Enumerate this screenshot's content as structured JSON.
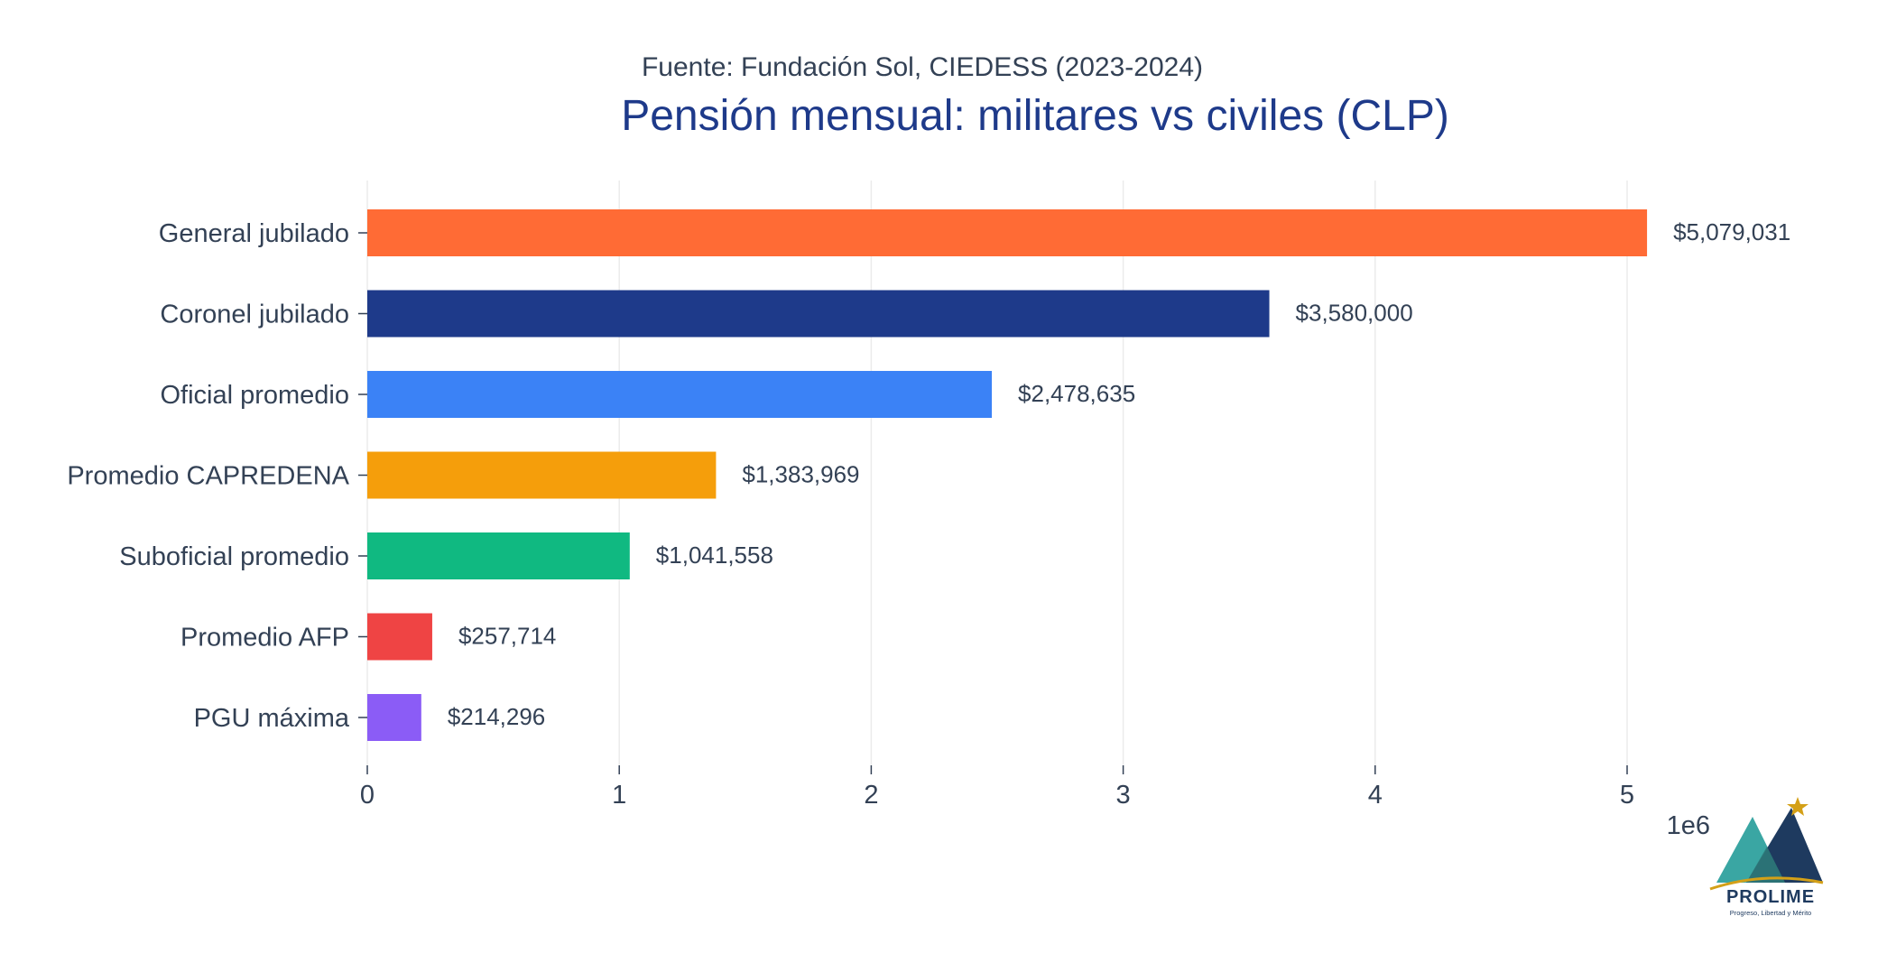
{
  "chart_data": {
    "type": "bar",
    "orientation": "horizontal",
    "subtitle": "Fuente: Fundación Sol, CIEDESS (2023-2024)",
    "title": "Pensión mensual: militares vs civiles (CLP)",
    "categories": [
      "General jubilado",
      "Coronel jubilado",
      "Oficial promedio",
      "Promedio CAPREDENA",
      "Suboficial promedio",
      "Promedio AFP",
      "PGU máxima"
    ],
    "values": [
      5079031,
      3580000,
      2478635,
      1383969,
      1041558,
      257714,
      214296
    ],
    "data_labels": [
      "$5,079,031",
      "$3,580,000",
      "$2,478,635",
      "$1,383,969",
      "$1,041,558",
      "$257,714",
      "$214,296"
    ],
    "colors": [
      "#FF6B35",
      "#1E3A8A",
      "#3B82F6",
      "#F59E0B",
      "#10B981",
      "#EF4444",
      "#8B5CF6"
    ],
    "xlim": [
      0,
      5500000
    ],
    "xticks": [
      0,
      1000000,
      2000000,
      3000000,
      4000000,
      5000000
    ],
    "xtick_labels": [
      "0",
      "1",
      "2",
      "3",
      "4",
      "5"
    ],
    "x_offset_text": "1e6",
    "xlabel": "",
    "ylabel": "",
    "grid": "vertical",
    "legend": "none"
  },
  "logo": {
    "name": "PROLIME",
    "tagline": "Progreso, Libertad y Mérito"
  }
}
